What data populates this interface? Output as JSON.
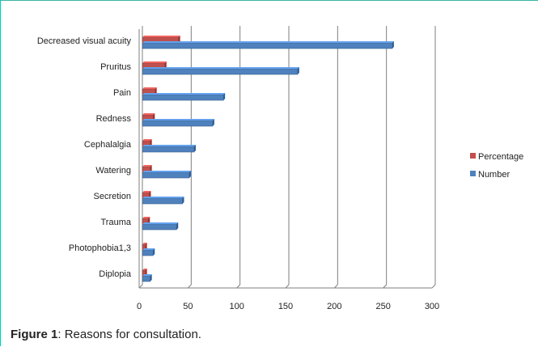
{
  "caption": {
    "label": "Figure 1",
    "text": ": Reasons for consultation."
  },
  "chart_data": {
    "type": "bar",
    "orientation": "horizontal",
    "categories": [
      "Decreased visual acuity",
      "Pruritus",
      "Pain",
      "Redness",
      "Cephalalgia",
      "Watering",
      "Secretion",
      "Trauma",
      "Photophobia1,3",
      "Diplopia"
    ],
    "series": [
      {
        "name": "Percentage",
        "color": "#c0504d",
        "values": [
          37,
          23,
          13,
          11,
          8,
          8,
          7,
          6,
          3,
          3
        ]
      },
      {
        "name": "Number",
        "color": "#4f81bd",
        "values": [
          256,
          159,
          83,
          72,
          53,
          48,
          41,
          35,
          11,
          8
        ]
      }
    ],
    "xlim": [
      0,
      300
    ],
    "x_ticks": [
      0,
      50,
      100,
      150,
      200,
      250,
      300
    ],
    "grid": true,
    "legend_position": "right"
  },
  "colors": {
    "frame_border": "#3bb4a6",
    "gridline": "#7f7f7f"
  }
}
